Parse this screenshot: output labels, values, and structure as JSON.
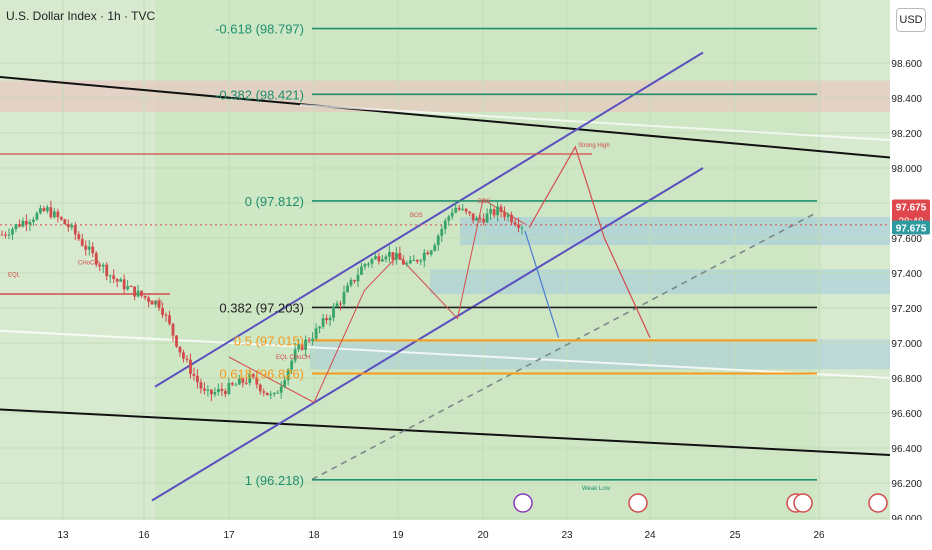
{
  "header": {
    "title": "U.S. Dollar Index · 1h · TVC",
    "currency": "USD"
  },
  "colors": {
    "bg": "#d7ead0",
    "zone": "#c6e3bb",
    "channel": "#5b4fc0",
    "fib": "#1f8f6e",
    "fib_orange": "#f59a1c",
    "trend": "#111111",
    "red": "#d34b4b",
    "bull": "#3aa36a",
    "bear": "#d24b4b",
    "price_badge": "#e0474c",
    "current_badge": "#2f9aa0"
  },
  "chart_data": {
    "type": "candlestick",
    "instrument": "U.S. Dollar Index",
    "interval": "1h",
    "ylim": [
      96.0,
      98.8
    ],
    "y_ticks": [
      "98.600",
      "98.400",
      "98.200",
      "98.000",
      "97.800",
      "97.600",
      "97.400",
      "97.200",
      "97.000",
      "96.800",
      "96.600",
      "96.400",
      "96.200",
      "96.000"
    ],
    "x_ticks": [
      "13",
      "16",
      "17",
      "18",
      "19",
      "20",
      "23",
      "24",
      "25",
      "26"
    ],
    "current_price": "97.675",
    "price_badges": [
      {
        "label": "97.675",
        "sub": "38:48",
        "color": "#e0474c"
      },
      {
        "label": "97.675",
        "color": "#2f9aa0"
      }
    ],
    "fib_levels": [
      {
        "label": "-0.618 (98.797)",
        "price": 98.797
      },
      {
        "label": "-0.382 (98.421)",
        "price": 98.421
      },
      {
        "label": "0 (97.812)",
        "price": 97.812
      },
      {
        "label": "0.382 (97.203)",
        "price": 97.203
      },
      {
        "label": "0.5 (97.015)",
        "price": 97.015
      },
      {
        "label": "0.618 (96.826)",
        "price": 96.826
      },
      {
        "label": "1 (96.218)",
        "price": 96.218
      }
    ],
    "annotations": [
      "EQL",
      "CHoCH",
      "BOS",
      "EQL CHoCH",
      "BOS",
      "BOS",
      "Strong High",
      "Weak Low"
    ],
    "close_path": [
      [
        "13",
        97.62
      ],
      [
        "13",
        97.7
      ],
      [
        "13",
        97.76
      ],
      [
        "13",
        97.66
      ],
      [
        "16",
        97.5
      ],
      [
        "16",
        97.36
      ],
      [
        "16",
        97.28
      ],
      [
        "16",
        97.22
      ],
      [
        "17",
        96.92
      ],
      [
        "17",
        96.7
      ],
      [
        "17",
        96.74
      ],
      [
        "17",
        96.8
      ],
      [
        "18",
        96.68
      ],
      [
        "18",
        96.95
      ],
      [
        "18",
        97.08
      ],
      [
        "18",
        97.25
      ],
      [
        "19",
        97.45
      ],
      [
        "19",
        97.52
      ],
      [
        "19",
        97.44
      ],
      [
        "19",
        97.55
      ],
      [
        "20",
        97.78
      ],
      [
        "20",
        97.7
      ],
      [
        "20",
        97.76
      ],
      [
        "20",
        97.675
      ]
    ]
  }
}
